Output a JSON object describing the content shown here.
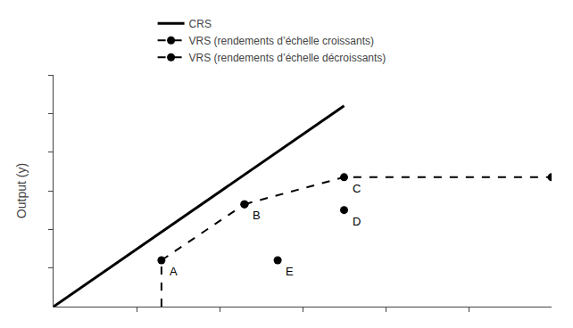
{
  "chart_data": {
    "type": "line",
    "ylabel": "Output (y)",
    "xlim": [
      0,
      6
    ],
    "ylim": [
      0,
      6
    ],
    "xticks": [
      1,
      2,
      3,
      4,
      5
    ],
    "yticks": [
      1,
      2,
      3,
      4,
      5,
      6
    ],
    "tick_labels": false,
    "grid": false,
    "legend": "top",
    "series": [
      {
        "name": "CRS",
        "color": "#000000",
        "line_style": "solid",
        "marker": "none",
        "x": [
          0,
          3.5
        ],
        "values": [
          0,
          5.2
        ]
      },
      {
        "name": "VRS (rendements d’échelle croissants)",
        "color": "#000000",
        "line_style": "dashed",
        "marker": "circle",
        "x": [
          1.3,
          2.3
        ],
        "values": [
          1.2,
          2.65
        ]
      },
      {
        "name": "VRS (rendements d’échelle décroissants)",
        "color": "#000000",
        "line_style": "dashed",
        "marker": "circle",
        "x": [
          2.3,
          3.5,
          6.0
        ],
        "values": [
          2.65,
          3.35,
          3.35
        ]
      },
      {
        "color": "#000000",
        "line_style": "dashed",
        "marker": "none",
        "x": [
          1.3,
          1.3
        ],
        "values": [
          0,
          1.2
        ]
      },
      {
        "type": "scatter",
        "color": "#000000",
        "marker": "circle",
        "x": [
          3.5,
          2.7
        ],
        "values": [
          2.5,
          1.2
        ]
      }
    ],
    "annotations": [
      {
        "text": "A",
        "x": 1.3,
        "y": 1.2
      },
      {
        "text": "B",
        "x": 2.3,
        "y": 2.65
      },
      {
        "text": "C",
        "x": 3.5,
        "y": 3.35
      },
      {
        "text": "D",
        "x": 3.5,
        "y": 2.5
      },
      {
        "text": "E",
        "x": 2.7,
        "y": 1.2
      }
    ]
  }
}
